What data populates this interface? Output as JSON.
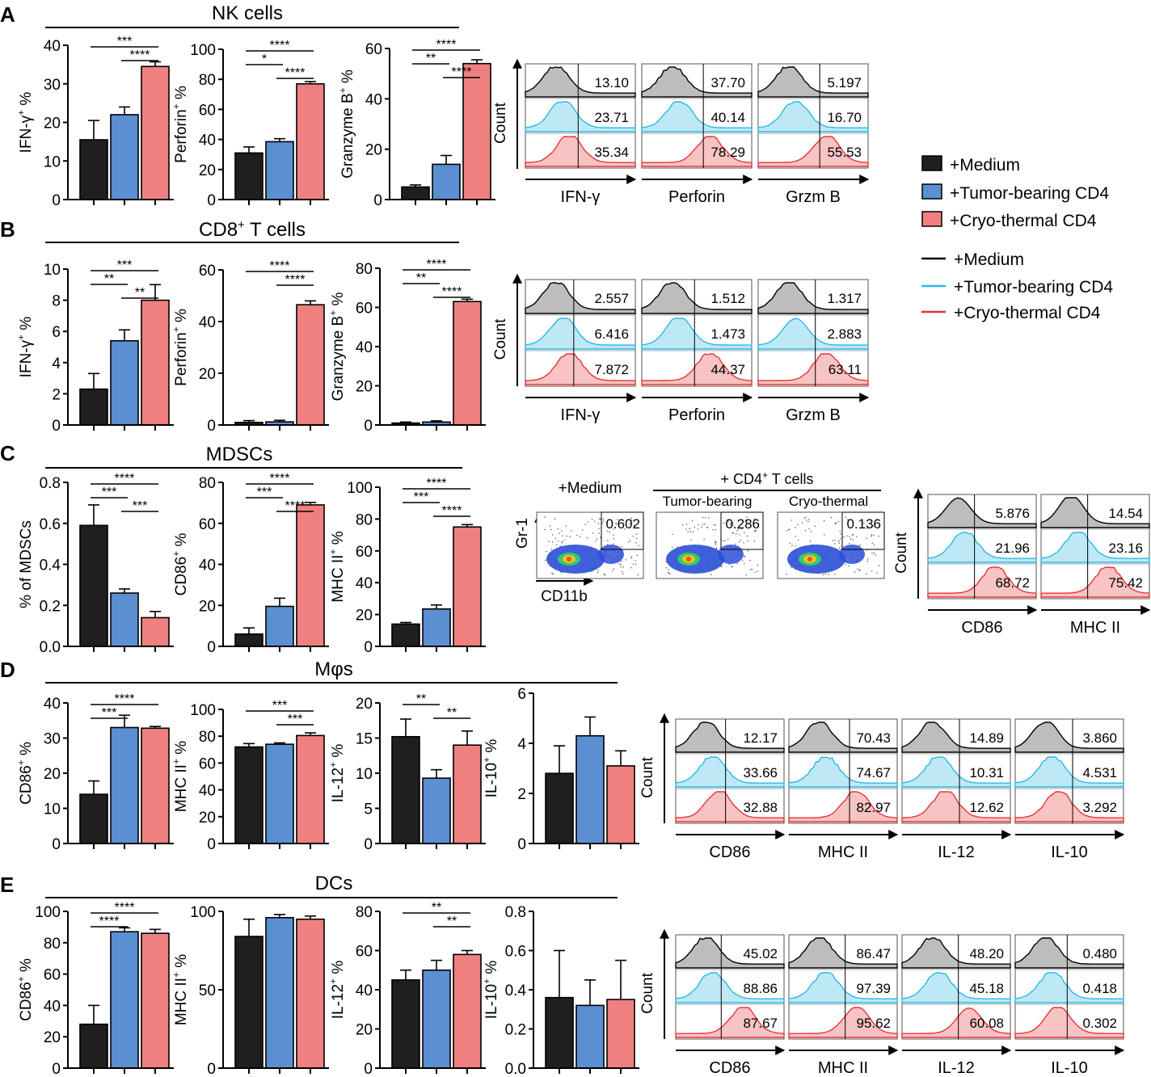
{
  "legend": {
    "bars": [
      {
        "label": "+Medium",
        "color": "#1f1f1f"
      },
      {
        "label": "+Tumor-bearing CD4",
        "color": "#5b8fd1"
      },
      {
        "label": "+Cryo-thermal CD4",
        "color": "#f08080"
      }
    ],
    "lines": [
      {
        "label": "+Medium",
        "color": "#000000"
      },
      {
        "label": "+Tumor-bearing CD4",
        "color": "#2bb8e6"
      },
      {
        "label": "+Cryo-thermal CD4",
        "color": "#e8343a"
      }
    ]
  },
  "panels": [
    {
      "letter": "A",
      "title": "NK cells"
    },
    {
      "letter": "B",
      "title": "CD8+ T cells"
    },
    {
      "letter": "C",
      "title": "MDSCs"
    },
    {
      "letter": "D",
      "title": "Mφs"
    },
    {
      "letter": "E",
      "title": "DCs"
    }
  ],
  "flow_labels": {
    "count": "Count",
    "gr1": "Gr-1",
    "cd11b": "CD11b"
  },
  "mdsc_scatter": {
    "cd4_header": "+ CD4+ T cells",
    "plots": [
      {
        "title": "+Medium",
        "value": "0.602"
      },
      {
        "title": "Tumor-bearing",
        "value": "0.286"
      },
      {
        "title": "Cryo-thermal",
        "value": "0.136"
      }
    ]
  },
  "histogram_groups": [
    {
      "panel": "A",
      "plots": [
        {
          "marker": "IFN-γ",
          "values": [
            "13.10",
            "23.71",
            "35.34"
          ]
        },
        {
          "marker": "Perforin",
          "values": [
            "37.70",
            "40.14",
            "78.29"
          ]
        },
        {
          "marker": "Grzm B",
          "values": [
            "5.197",
            "16.70",
            "55.53"
          ]
        }
      ]
    },
    {
      "panel": "B",
      "plots": [
        {
          "marker": "IFN-γ",
          "values": [
            "2.557",
            "6.416",
            "7.872"
          ]
        },
        {
          "marker": "Perforin",
          "values": [
            "1.512",
            "1.473",
            "44.37"
          ]
        },
        {
          "marker": "Grzm B",
          "values": [
            "1.317",
            "2.883",
            "63.11"
          ]
        }
      ]
    },
    {
      "panel": "C",
      "plots": [
        {
          "marker": "CD86",
          "values": [
            "5.876",
            "21.96",
            "68.72"
          ]
        },
        {
          "marker": "MHC II",
          "values": [
            "14.54",
            "23.16",
            "75.42"
          ]
        }
      ]
    },
    {
      "panel": "D",
      "plots": [
        {
          "marker": "CD86",
          "values": [
            "12.17",
            "33.66",
            "32.88"
          ]
        },
        {
          "marker": "MHC II",
          "values": [
            "70.43",
            "74.67",
            "82.97"
          ]
        },
        {
          "marker": "IL-12",
          "values": [
            "14.89",
            "10.31",
            "12.62"
          ]
        },
        {
          "marker": "IL-10",
          "values": [
            "3.860",
            "4.531",
            "3.292"
          ]
        }
      ]
    },
    {
      "panel": "E",
      "plots": [
        {
          "marker": "CD86",
          "values": [
            "45.02",
            "88.86",
            "87.67"
          ]
        },
        {
          "marker": "MHC II",
          "values": [
            "86.47",
            "97.39",
            "95.62"
          ]
        },
        {
          "marker": "IL-12",
          "values": [
            "48.20",
            "45.18",
            "60.08"
          ]
        },
        {
          "marker": "IL-10",
          "values": [
            "0.480",
            "0.418",
            "0.302"
          ]
        }
      ]
    }
  ],
  "chart_data": [
    {
      "type": "bar",
      "panel": "A",
      "ylabel": "IFN-γ+ %",
      "ylim": [
        0,
        40
      ],
      "yticks": [
        "0",
        "10",
        "20",
        "30",
        "40"
      ],
      "categories": [
        "+Medium",
        "+Tumor-bearing CD4",
        "+Cryo-thermal CD4"
      ],
      "values": [
        15.5,
        22,
        34.5
      ],
      "errors": [
        5,
        2,
        1.2
      ],
      "significance": [
        {
          "pair": [
            0,
            2
          ],
          "stars": "***"
        },
        {
          "pair": [
            1,
            2
          ],
          "stars": "****"
        }
      ]
    },
    {
      "type": "bar",
      "panel": "A",
      "ylabel": "Perforin+ %",
      "ylim": [
        0,
        100
      ],
      "yticks": [
        "0",
        "20",
        "40",
        "60",
        "80",
        "100"
      ],
      "categories": [
        "+Medium",
        "+Tumor-bearing CD4",
        "+Cryo-thermal CD4"
      ],
      "values": [
        31,
        38.5,
        77
      ],
      "errors": [
        4,
        2,
        1.5
      ],
      "significance": [
        {
          "pair": [
            0,
            2
          ],
          "stars": "****"
        },
        {
          "pair": [
            0,
            1
          ],
          "stars": "*"
        },
        {
          "pair": [
            1,
            2
          ],
          "stars": "****"
        }
      ]
    },
    {
      "type": "bar",
      "panel": "A",
      "ylabel": "Granzyme B+ %",
      "ylim": [
        0,
        60
      ],
      "yticks": [
        "0",
        "20",
        "40",
        "60"
      ],
      "categories": [
        "+Medium",
        "+Tumor-bearing CD4",
        "+Cryo-thermal CD4"
      ],
      "values": [
        5,
        14,
        54
      ],
      "errors": [
        0.8,
        3.5,
        1.5
      ],
      "significance": [
        {
          "pair": [
            0,
            2
          ],
          "stars": "****"
        },
        {
          "pair": [
            0,
            1
          ],
          "stars": "**"
        },
        {
          "pair": [
            1,
            2
          ],
          "stars": "****"
        }
      ]
    },
    {
      "type": "bar",
      "panel": "B",
      "ylabel": "IFN-γ+ %",
      "ylim": [
        0,
        10
      ],
      "yticks": [
        "0",
        "2",
        "4",
        "6",
        "8",
        "10"
      ],
      "categories": [
        "+Medium",
        "+Tumor-bearing CD4",
        "+Cryo-thermal CD4"
      ],
      "values": [
        2.3,
        5.4,
        8
      ],
      "errors": [
        1,
        0.7,
        1
      ],
      "significance": [
        {
          "pair": [
            0,
            2
          ],
          "stars": "***"
        },
        {
          "pair": [
            0,
            1
          ],
          "stars": "**"
        },
        {
          "pair": [
            1,
            2
          ],
          "stars": "**"
        }
      ]
    },
    {
      "type": "bar",
      "panel": "B",
      "ylabel": "Perforin+ %",
      "ylim": [
        0,
        60
      ],
      "yticks": [
        "0",
        "20",
        "40",
        "60"
      ],
      "categories": [
        "+Medium",
        "+Tumor-bearing CD4",
        "+Cryo-thermal CD4"
      ],
      "values": [
        1,
        1.2,
        46.5
      ],
      "errors": [
        0.7,
        0.6,
        1.5
      ],
      "significance": [
        {
          "pair": [
            0,
            2
          ],
          "stars": "****"
        },
        {
          "pair": [
            1,
            2
          ],
          "stars": "****"
        }
      ]
    },
    {
      "type": "bar",
      "panel": "B",
      "ylabel": "Granzyme B+ %",
      "ylim": [
        0,
        80
      ],
      "yticks": [
        "0",
        "20",
        "40",
        "60",
        "80"
      ],
      "categories": [
        "+Medium",
        "+Tumor-bearing CD4",
        "+Cryo-thermal CD4"
      ],
      "values": [
        1,
        1.5,
        63
      ],
      "errors": [
        0.5,
        0.6,
        1.2
      ],
      "significance": [
        {
          "pair": [
            0,
            2
          ],
          "stars": "****"
        },
        {
          "pair": [
            0,
            1
          ],
          "stars": "**"
        },
        {
          "pair": [
            1,
            2
          ],
          "stars": "****"
        }
      ]
    },
    {
      "type": "bar",
      "panel": "C",
      "ylabel": "% of MDSCs",
      "ylim": [
        0,
        0.8
      ],
      "yticks": [
        "0.0",
        "0.2",
        "0.4",
        "0.6",
        "0.8"
      ],
      "categories": [
        "+Medium",
        "+Tumor-bearing CD4",
        "+Cryo-thermal CD4"
      ],
      "values": [
        0.59,
        0.26,
        0.14
      ],
      "errors": [
        0.1,
        0.02,
        0.03
      ],
      "significance": [
        {
          "pair": [
            0,
            2
          ],
          "stars": "****"
        },
        {
          "pair": [
            0,
            1
          ],
          "stars": "***"
        },
        {
          "pair": [
            1,
            2
          ],
          "stars": "***"
        }
      ]
    },
    {
      "type": "bar",
      "panel": "C",
      "ylabel": "CD86+ %",
      "ylim": [
        0,
        80
      ],
      "yticks": [
        "0",
        "20",
        "40",
        "60",
        "80"
      ],
      "categories": [
        "+Medium",
        "+Tumor-bearing CD4",
        "+Cryo-thermal CD4"
      ],
      "values": [
        6,
        19.5,
        69
      ],
      "errors": [
        3,
        4,
        1.2
      ],
      "significance": [
        {
          "pair": [
            0,
            2
          ],
          "stars": "****"
        },
        {
          "pair": [
            0,
            1
          ],
          "stars": "***"
        },
        {
          "pair": [
            1,
            2
          ],
          "stars": "****"
        }
      ]
    },
    {
      "type": "bar",
      "panel": "C",
      "ylabel": "MHC II+ %",
      "ylim": [
        0,
        100
      ],
      "yticks": [
        "0",
        "20",
        "40",
        "60",
        "80",
        "100"
      ],
      "categories": [
        "+Medium",
        "+Tumor-bearing CD4",
        "+Cryo-thermal CD4"
      ],
      "values": [
        14,
        23.5,
        75
      ],
      "errors": [
        1,
        2.5,
        1.5
      ],
      "significance": [
        {
          "pair": [
            0,
            2
          ],
          "stars": "****"
        },
        {
          "pair": [
            0,
            1
          ],
          "stars": "***"
        },
        {
          "pair": [
            1,
            2
          ],
          "stars": "****"
        }
      ]
    },
    {
      "type": "bar",
      "panel": "D",
      "ylabel": "CD86+ %",
      "ylim": [
        0,
        40
      ],
      "yticks": [
        "0",
        "10",
        "20",
        "30",
        "40"
      ],
      "categories": [
        "+Medium",
        "+Tumor-bearing CD4",
        "+Cryo-thermal CD4"
      ],
      "values": [
        14,
        33,
        32.8
      ],
      "errors": [
        3.8,
        3.5,
        0.5
      ],
      "significance": [
        {
          "pair": [
            0,
            2
          ],
          "stars": "****"
        },
        {
          "pair": [
            0,
            1
          ],
          "stars": "***"
        }
      ]
    },
    {
      "type": "bar",
      "panel": "D",
      "ylabel": "MHC II+ %",
      "ylim": [
        0,
        100
      ],
      "yticks": [
        "0",
        "20",
        "40",
        "60",
        "80",
        "100"
      ],
      "categories": [
        "+Medium",
        "+Tumor-bearing CD4",
        "+Cryo-thermal CD4"
      ],
      "values": [
        72,
        74,
        80.5
      ],
      "errors": [
        2.5,
        1,
        2
      ],
      "significance": [
        {
          "pair": [
            0,
            2
          ],
          "stars": "***"
        },
        {
          "pair": [
            1,
            2
          ],
          "stars": "***"
        }
      ]
    },
    {
      "type": "bar",
      "panel": "D",
      "ylabel": "IL-12+ %",
      "ylim": [
        0,
        20
      ],
      "yticks": [
        "0",
        "5",
        "10",
        "15",
        "20"
      ],
      "categories": [
        "+Medium",
        "+Tumor-bearing CD4",
        "+Cryo-thermal CD4"
      ],
      "values": [
        15.2,
        9.3,
        14
      ],
      "errors": [
        2.5,
        1.2,
        2
      ],
      "significance": [
        {
          "pair": [
            0,
            1
          ],
          "stars": "**"
        },
        {
          "pair": [
            1,
            2
          ],
          "stars": "**"
        }
      ]
    },
    {
      "type": "bar",
      "panel": "D",
      "ylabel": "IL-10+ %",
      "ylim": [
        0,
        6
      ],
      "yticks": [
        "0",
        "2",
        "4",
        "6"
      ],
      "categories": [
        "+Medium",
        "+Tumor-bearing CD4",
        "+Cryo-thermal CD4"
      ],
      "values": [
        2.8,
        4.3,
        3.1
      ],
      "errors": [
        1.1,
        0.75,
        0.6
      ],
      "significance": []
    },
    {
      "type": "bar",
      "panel": "E",
      "ylabel": "CD86+ %",
      "ylim": [
        0,
        100
      ],
      "yticks": [
        "0",
        "20",
        "40",
        "60",
        "80",
        "100"
      ],
      "categories": [
        "+Medium",
        "+Tumor-bearing CD4",
        "+Cryo-thermal CD4"
      ],
      "values": [
        28,
        87,
        86
      ],
      "errors": [
        12,
        2.5,
        2.5
      ],
      "significance": [
        {
          "pair": [
            0,
            2
          ],
          "stars": "****"
        },
        {
          "pair": [
            0,
            1
          ],
          "stars": "****"
        }
      ]
    },
    {
      "type": "bar",
      "panel": "E",
      "ylabel": "MHC II+ %",
      "ylim": [
        0,
        100
      ],
      "yticks": [
        "0",
        "50",
        "100"
      ],
      "categories": [
        "+Medium",
        "+Tumor-bearing CD4",
        "+Cryo-thermal CD4"
      ],
      "values": [
        84,
        96,
        95
      ],
      "errors": [
        11,
        2,
        2
      ],
      "significance": []
    },
    {
      "type": "bar",
      "panel": "E",
      "ylabel": "IL-12+ %",
      "ylim": [
        0,
        80
      ],
      "yticks": [
        "0",
        "20",
        "40",
        "60",
        "80"
      ],
      "categories": [
        "+Medium",
        "+Tumor-bearing CD4",
        "+Cryo-thermal CD4"
      ],
      "values": [
        45,
        50,
        58
      ],
      "errors": [
        5,
        5,
        2
      ],
      "significance": [
        {
          "pair": [
            0,
            2
          ],
          "stars": "**"
        },
        {
          "pair": [
            1,
            2
          ],
          "stars": "**"
        }
      ]
    },
    {
      "type": "bar",
      "panel": "E",
      "ylabel": "IL-10+ %",
      "ylim": [
        0,
        0.8
      ],
      "yticks": [
        "0.0",
        "0.2",
        "0.4",
        "0.6",
        "0.8"
      ],
      "categories": [
        "+Medium",
        "+Tumor-bearing CD4",
        "+Cryo-thermal CD4"
      ],
      "values": [
        0.36,
        0.32,
        0.35
      ],
      "errors": [
        0.24,
        0.13,
        0.2
      ],
      "significance": []
    }
  ]
}
